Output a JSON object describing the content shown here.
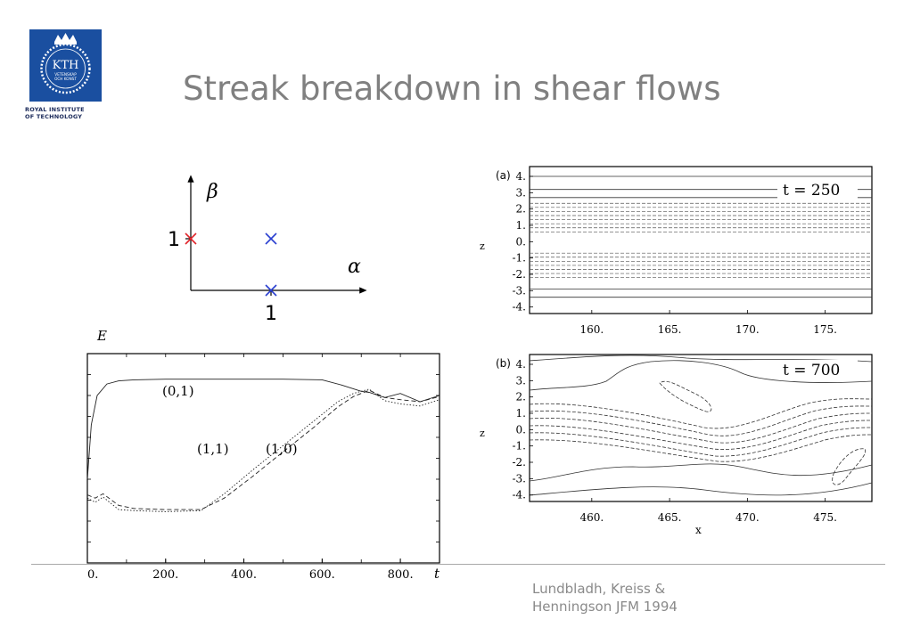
{
  "slide": {
    "title": "Streak breakdown in shear flows",
    "citation_line1": "Lundbladh, Kreiss &",
    "citation_line2": "Henningson JFM 1994"
  },
  "logo": {
    "text": "KTH",
    "motto_line1": "VETENSKAP",
    "motto_line2": "OCH KONST",
    "caption_line1": "ROYAL INSTITUTE",
    "caption_line2": "OF TECHNOLOGY",
    "color": "#1a4fa0"
  },
  "wavenumber_diagram": {
    "x_axis_label": "α",
    "y_axis_label": "β",
    "x_tick_label": "1",
    "y_tick_label": "1",
    "points": [
      {
        "alpha": 0,
        "beta": 1,
        "color": "#e0242a"
      },
      {
        "alpha": 1,
        "beta": 1,
        "color": "#2a3fd0"
      },
      {
        "alpha": 1,
        "beta": 0,
        "color": "#2a3fd0"
      }
    ]
  },
  "chart_data": [
    {
      "type": "line",
      "panel": "energy",
      "ylabel": "E",
      "xlabel": "t",
      "x_ticks": [
        "0.",
        "200.",
        "400.",
        "600.",
        "800."
      ],
      "xlim": [
        0,
        900
      ],
      "annotations": [
        "(0,1)",
        "(1,1)",
        "(1,0)"
      ],
      "series": [
        {
          "name": "(0,1)",
          "style": "solid",
          "x": [
            0,
            10,
            25,
            50,
            80,
            120,
            200,
            300,
            400,
            500,
            600,
            650,
            700,
            720,
            760,
            800,
            850,
            900
          ],
          "y": [
            4.0,
            6.6,
            8.0,
            8.55,
            8.7,
            8.75,
            8.78,
            8.78,
            8.78,
            8.78,
            8.75,
            8.5,
            8.2,
            8.15,
            7.9,
            8.1,
            7.7,
            8.0
          ]
        },
        {
          "name": "(1,1)",
          "style": "dotted",
          "x": [
            0,
            20,
            40,
            80,
            120,
            200,
            290,
            350,
            420,
            500,
            580,
            640,
            680,
            720,
            760,
            800,
            850,
            900
          ],
          "y": [
            3.1,
            2.9,
            3.15,
            2.55,
            2.5,
            2.45,
            2.5,
            3.3,
            4.4,
            5.6,
            6.8,
            7.7,
            8.1,
            8.3,
            7.75,
            7.6,
            7.5,
            7.8
          ]
        },
        {
          "name": "(1,0)",
          "style": "dashed",
          "x": [
            0,
            20,
            40,
            80,
            120,
            200,
            290,
            350,
            420,
            500,
            580,
            640,
            680,
            720,
            760,
            800,
            850,
            900
          ],
          "y": [
            3.25,
            3.1,
            3.3,
            2.75,
            2.6,
            2.55,
            2.55,
            3.1,
            4.1,
            5.3,
            6.5,
            7.45,
            7.95,
            8.25,
            7.9,
            7.8,
            7.7,
            7.95
          ]
        }
      ]
    },
    {
      "type": "line",
      "panel": "(a)",
      "time_label": "t = 250",
      "ylabel": "z",
      "xlim": [
        156,
        178
      ],
      "ylim": [
        -4.4,
        4.6
      ],
      "x_ticks": [
        "160.",
        "165.",
        "170.",
        "175."
      ],
      "y_ticks": [
        "4.",
        "3.",
        "2.",
        "1.",
        "0.",
        "-1.",
        "-2.",
        "-3.",
        "-4."
      ],
      "solid_contour_levels_z": [
        4.0,
        3.2,
        2.7,
        -2.9,
        -3.4
      ],
      "dashed_contour_levels_z": [
        2.35,
        2.1,
        1.85,
        1.6,
        1.35,
        1.1,
        0.85,
        0.6,
        -0.7,
        -0.95,
        -1.2,
        -1.45,
        -1.7,
        -1.95,
        -2.2
      ]
    },
    {
      "type": "line",
      "panel": "(b)",
      "time_label": "t = 700",
      "ylabel": "z",
      "xlabel": "x",
      "xlim": [
        456,
        478
      ],
      "ylim": [
        -4.4,
        4.6
      ],
      "x_ticks": [
        "460.",
        "465.",
        "470.",
        "475."
      ],
      "y_ticks": [
        "4.",
        "3.",
        "2.",
        "1.",
        "0.",
        "-1.",
        "-2.",
        "-3.",
        "-4."
      ]
    }
  ]
}
